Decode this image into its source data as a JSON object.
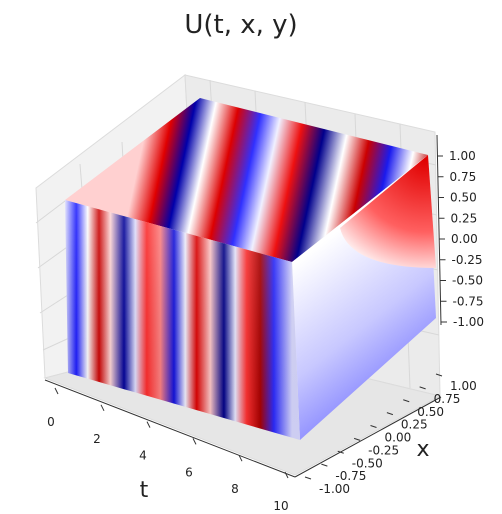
{
  "chart_data": {
    "type": "surface-3d",
    "title": "U(t, x, y)",
    "xlabel": "t",
    "ylabel": "x",
    "zlabel": "",
    "colormap": "seismic",
    "t_range": [
      0,
      10
    ],
    "x_range": [
      -1,
      1
    ],
    "z_range": [
      -1,
      1
    ],
    "t_ticks": [
      "0",
      "2",
      "4",
      "6",
      "8",
      "10"
    ],
    "x_ticks": [
      "-1.00",
      "-0.75",
      "-0.50",
      "-0.25",
      "0.00",
      "0.25",
      "0.50",
      "0.75",
      "1.00"
    ],
    "z_ticks": [
      "-1.00",
      "-0.75",
      "-0.50",
      "-0.25",
      "0.00",
      "0.25",
      "0.50",
      "0.75",
      "1.00"
    ],
    "value_range": [
      -1,
      1
    ],
    "colors": {
      "positive": "#800000",
      "zero": "#ffffff",
      "negative": "#00004c"
    }
  }
}
